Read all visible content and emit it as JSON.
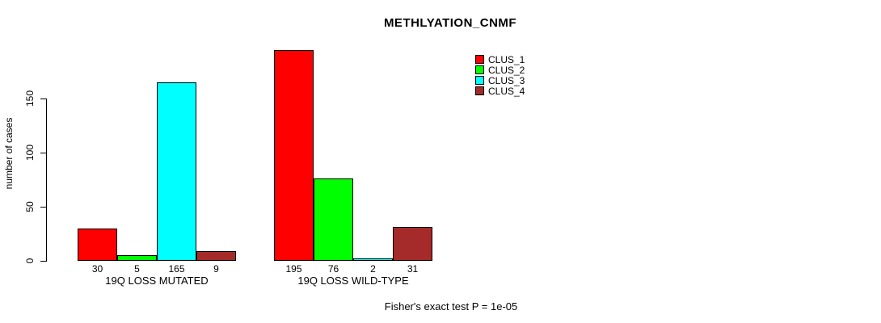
{
  "chart_data": {
    "type": "bar",
    "title": "METHLYATION_CNMF",
    "ylabel": "number of cases",
    "xlabel": "",
    "yticks": [
      0,
      50,
      100,
      150
    ],
    "ylim": [
      0,
      201
    ],
    "grid": false,
    "legend_position": "top-right",
    "series": [
      {
        "name": "CLUS_1",
        "color": "#FF0000"
      },
      {
        "name": "CLUS_2",
        "color": "#00FF00"
      },
      {
        "name": "CLUS_3",
        "color": "#00FFFF"
      },
      {
        "name": "CLUS_4",
        "color": "#A52A2A"
      }
    ],
    "groups": [
      {
        "label": "19Q LOSS MUTATED",
        "values": [
          30,
          5,
          165,
          9
        ]
      },
      {
        "label": "19Q LOSS WILD-TYPE",
        "values": [
          195,
          76,
          2,
          31
        ]
      }
    ],
    "bar_value_labels": true,
    "annotation": "Fisher's exact test P = 1e-05"
  }
}
